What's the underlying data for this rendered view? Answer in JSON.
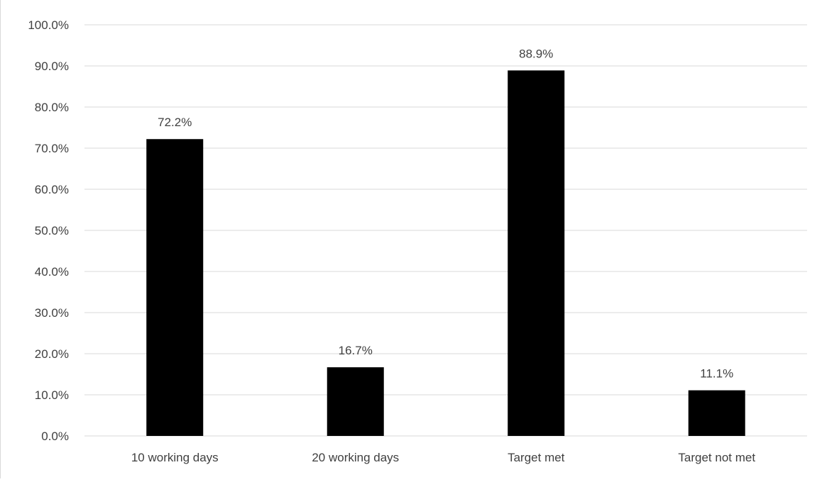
{
  "chart_data": {
    "type": "bar",
    "categories": [
      "10 working days",
      "20 working days",
      "Target met",
      "Target not met"
    ],
    "values": [
      72.2,
      16.7,
      88.9,
      11.1
    ],
    "data_labels": [
      "72.2%",
      "16.7%",
      "88.9%",
      "11.1%"
    ],
    "y_ticks": [
      "0.0%",
      "10.0%",
      "20.0%",
      "30.0%",
      "40.0%",
      "50.0%",
      "60.0%",
      "70.0%",
      "80.0%",
      "90.0%",
      "100.0%"
    ],
    "ylim": [
      0,
      100
    ],
    "grid": true,
    "legend": "none",
    "title": "",
    "xlabel": "",
    "ylabel": ""
  },
  "colors": {
    "bar": "#000000",
    "grid": "#d9d9d9",
    "text": "#404040"
  }
}
